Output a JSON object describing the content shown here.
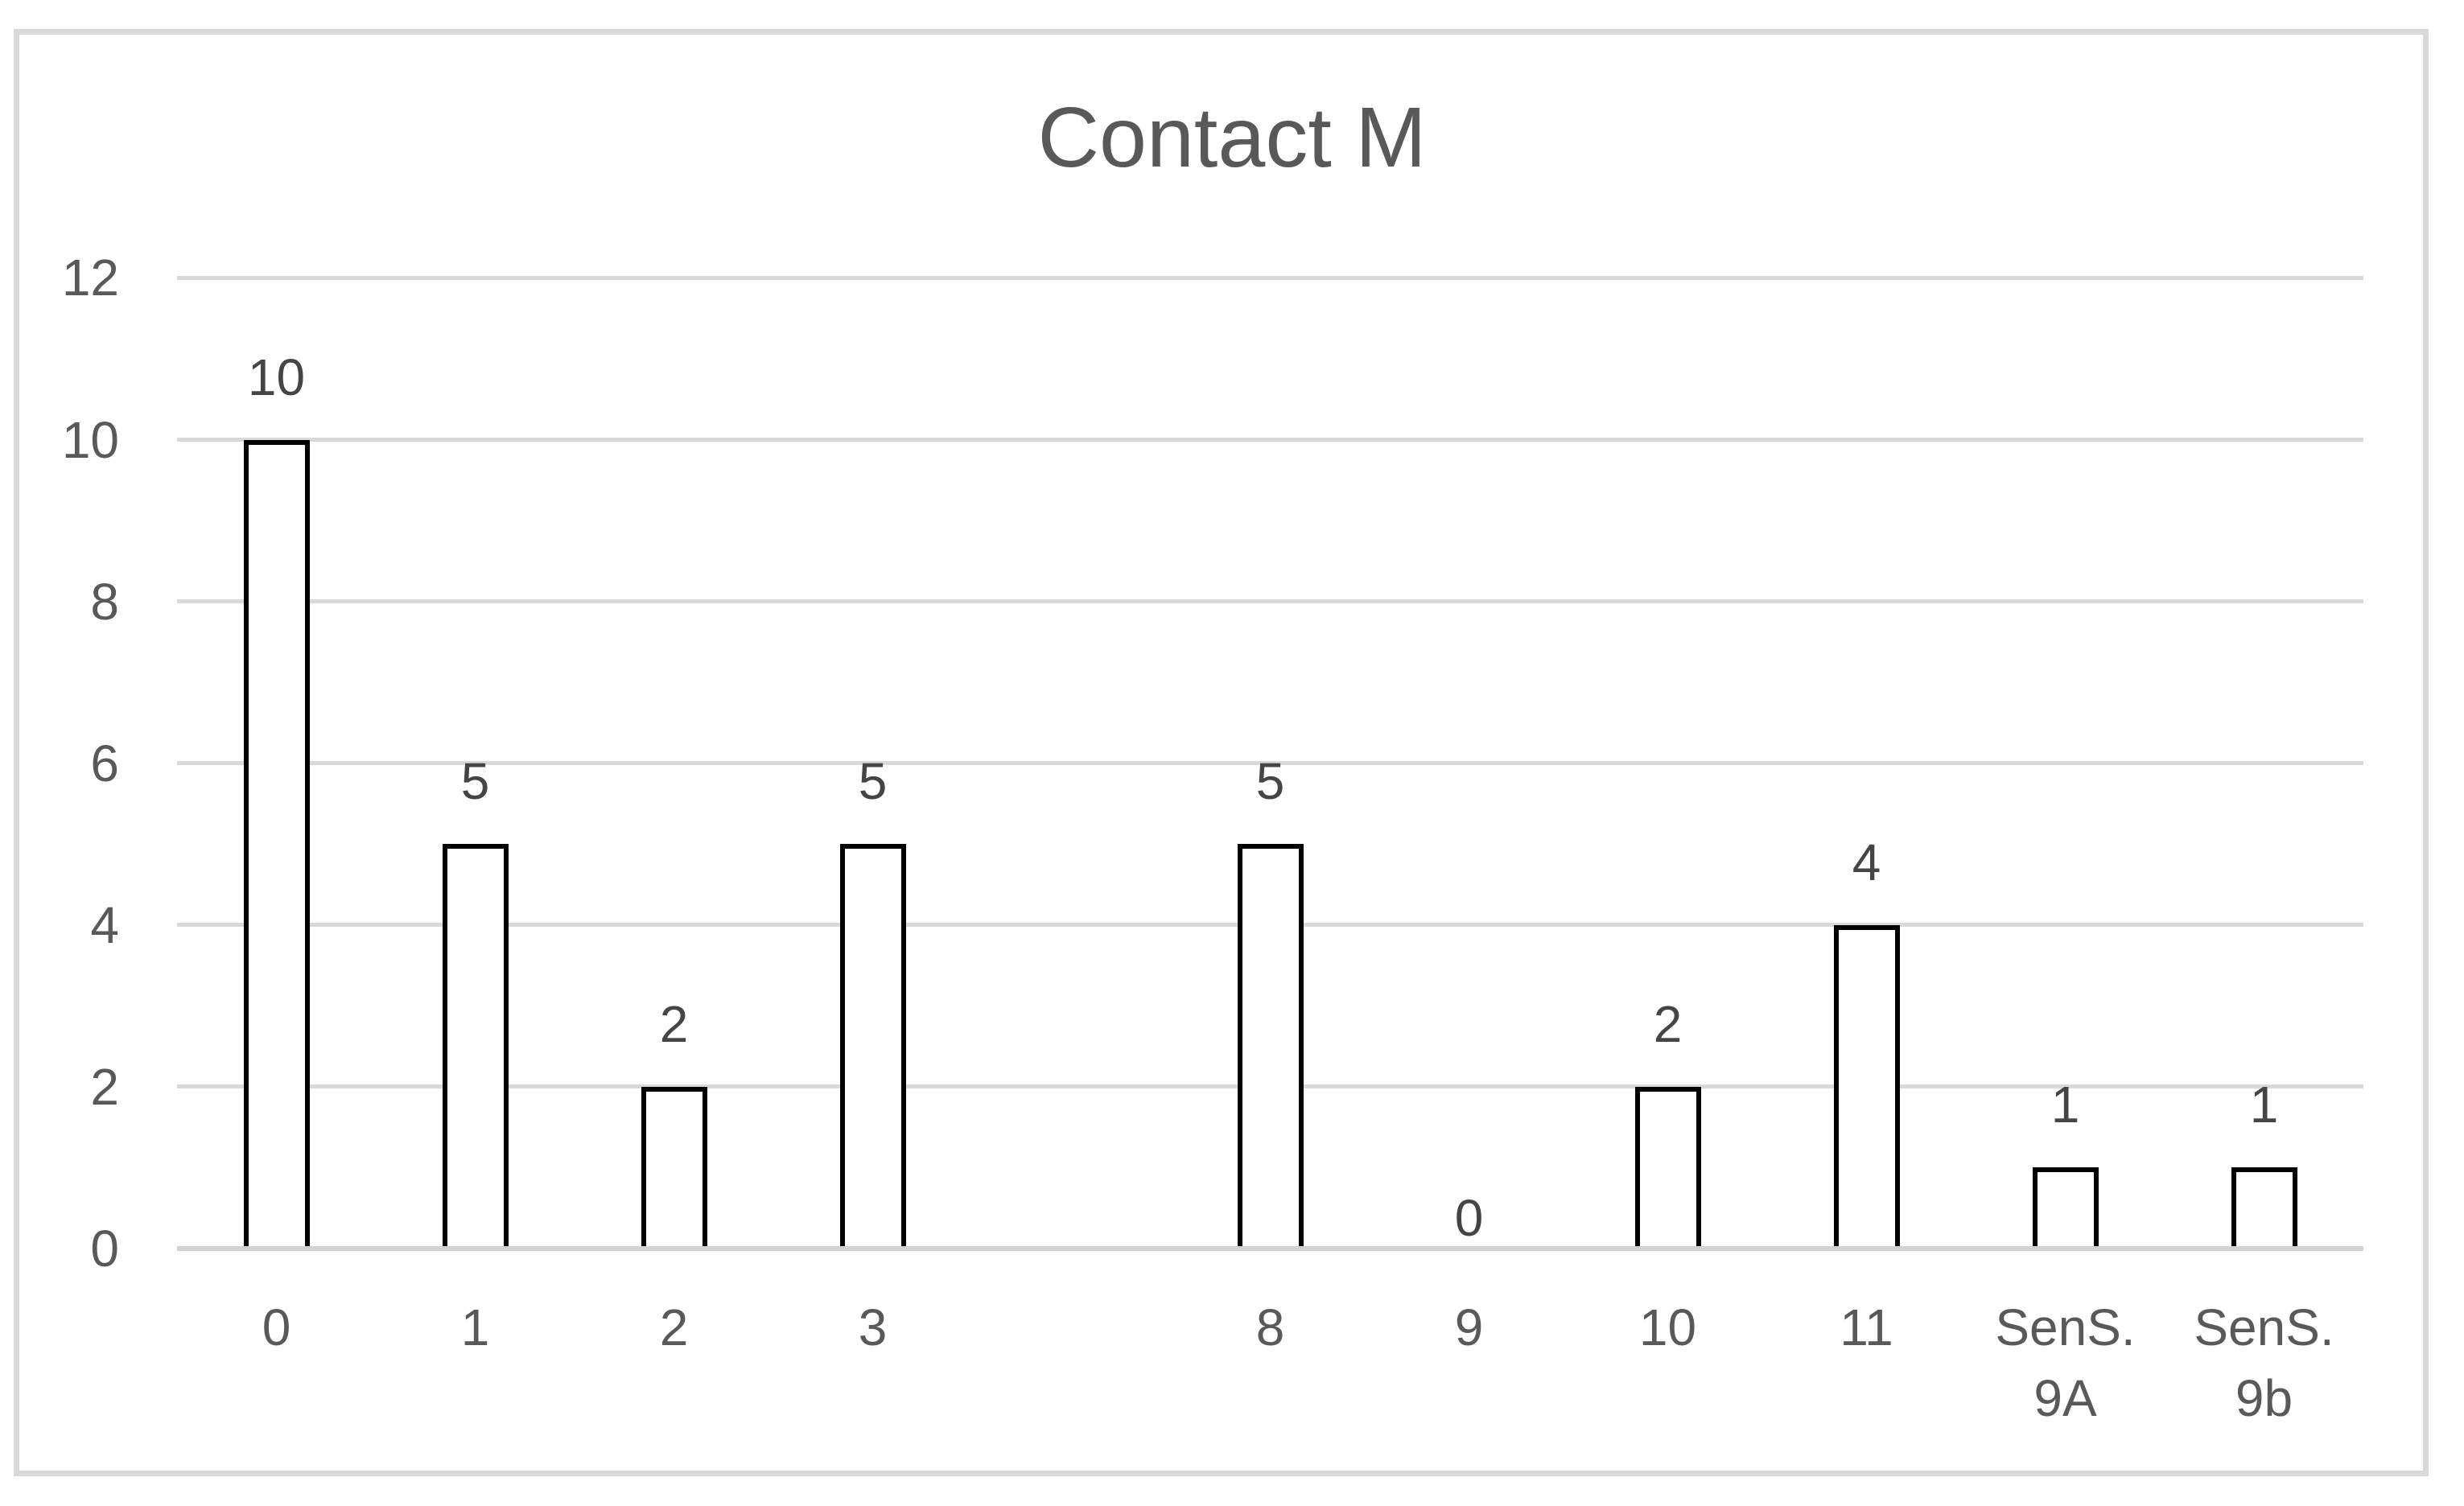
{
  "chart_data": {
    "type": "bar",
    "title": "Contact M",
    "categories": [
      "0",
      "1",
      "2",
      "3",
      "",
      "8",
      "9",
      "10",
      "11",
      "SenS.\n9A",
      "SenS.\n9b"
    ],
    "values": [
      10,
      5,
      2,
      5,
      null,
      5,
      0,
      2,
      4,
      1,
      1
    ],
    "data_labels": [
      "10",
      "5",
      "2",
      "5",
      "",
      "5",
      "0",
      "2",
      "4",
      "1",
      "1"
    ],
    "xlabel": "",
    "ylabel": "",
    "ylim": [
      0,
      12
    ],
    "yticks": [
      0,
      2,
      4,
      6,
      8,
      10,
      12
    ],
    "grid": true,
    "legend": false,
    "data_label_position": "outside-end",
    "bar_fill": "#ffffff",
    "bar_border": "#000000"
  },
  "colors": {
    "background": "#ffffff",
    "frame_border": "#d9d9d9",
    "gridline": "#d9d9d9",
    "axis_line": "#d3d3d3",
    "title_text": "#595959",
    "tick_text": "#595959",
    "data_label_text": "#454545",
    "bar_fill": "#ffffff",
    "bar_border": "#000000"
  }
}
